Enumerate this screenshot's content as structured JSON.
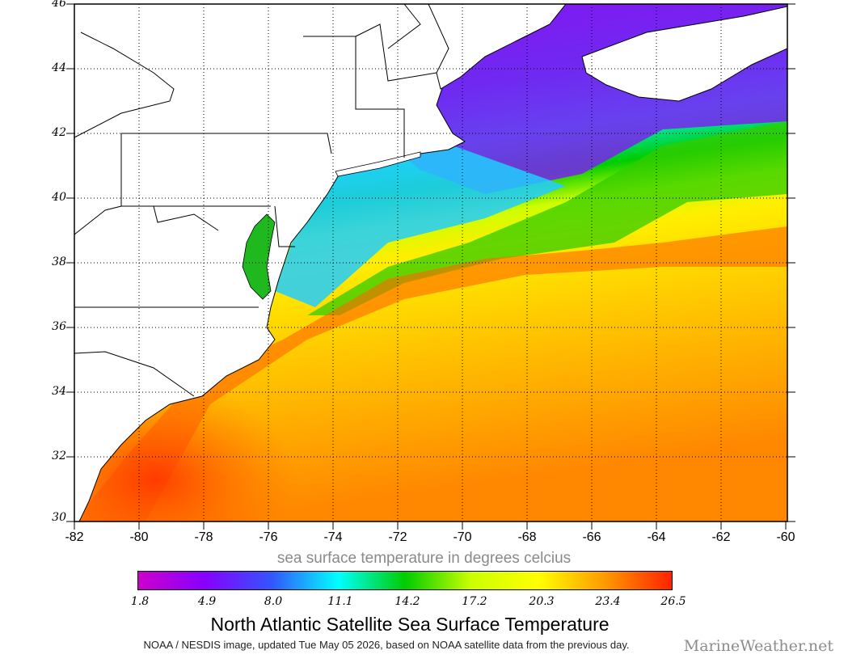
{
  "map": {
    "lat_ticks": [
      "46",
      "44",
      "42",
      "40",
      "38",
      "36",
      "34",
      "32",
      "30"
    ],
    "lon_ticks": [
      "-82",
      "-80",
      "-78",
      "-76",
      "-74",
      "-72",
      "-70",
      "-68",
      "-66",
      "-64",
      "-62",
      "-60"
    ],
    "lat_range": [
      30,
      46
    ],
    "lon_range": [
      -82,
      -60
    ],
    "grid": "dotted",
    "colors": {
      "land": "#ffffff",
      "coastline": "#000000",
      "chesapeake_bay": "#1fb81f"
    }
  },
  "colorbar": {
    "caption": "sea surface temperature in degrees celcius",
    "tick_labels": [
      "1.8",
      "4.9",
      "8.0",
      "11.1",
      "14.2",
      "17.2",
      "20.3",
      "23.4",
      "26.5"
    ],
    "range": [
      1.8,
      26.5
    ],
    "colors": [
      "#cc00cc",
      "#8800ff",
      "#3355ff",
      "#00ffff",
      "#00cc00",
      "#ccff00",
      "#ffff00",
      "#ff9900",
      "#ff2200"
    ]
  },
  "title": "North Atlantic Satellite Sea Surface Temperature",
  "credit": "NOAA / NESDIS image, updated Tue May 05 2026, based on NOAA satellite data from the previous day.",
  "watermark": "MarineWeather.net"
}
